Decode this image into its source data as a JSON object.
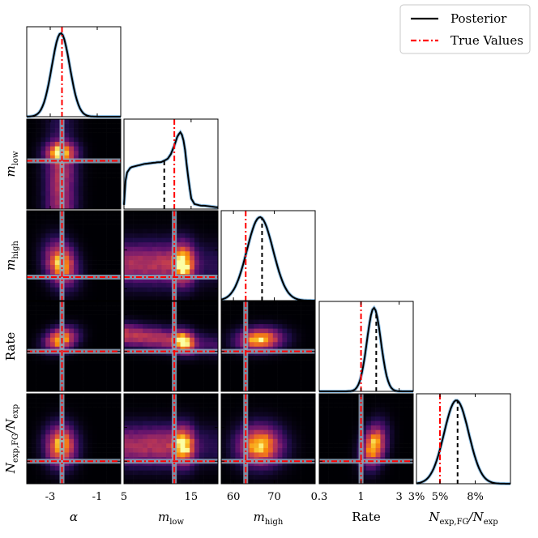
{
  "chart_data": {
    "type": "corner",
    "parameters": [
      {
        "key": "alpha",
        "label": "α",
        "sub": "",
        "italic": true,
        "range": [
          -4,
          0
        ],
        "log": false,
        "ticks": [
          -3,
          -1
        ],
        "tick_labels": [
          "-3",
          "-1"
        ],
        "truth": -2.5,
        "median": -2.5,
        "mode": -2.55,
        "sd": 0.38
      },
      {
        "key": "m_low",
        "label": "m",
        "sub": "low",
        "italic": true,
        "range": [
          5,
          19
        ],
        "log": false,
        "ticks": [
          5,
          15
        ],
        "tick_labels": [
          "5",
          "15"
        ],
        "truth": 12.5,
        "median": 11.0
      },
      {
        "key": "m_high",
        "label": "m",
        "sub": "high",
        "italic": true,
        "range": [
          57,
          80
        ],
        "log": false,
        "ticks": [
          60,
          70
        ],
        "tick_labels": [
          "60",
          "70"
        ],
        "truth": 63.0,
        "median": 67.0,
        "mode": 66.5,
        "sd": 3.2
      },
      {
        "key": "rate",
        "label": "Rate",
        "sub": "",
        "italic": false,
        "range": [
          0.3,
          4.5
        ],
        "log": true,
        "ticks": [
          0.3,
          1,
          3
        ],
        "tick_labels": [
          "0.3",
          "1",
          "3"
        ],
        "truth": 1.0,
        "median": 1.55,
        "mode": 1.45,
        "sd": 0.32
      },
      {
        "key": "n_exp_frac",
        "label": "N",
        "sub": "exp,FG",
        "label2": "N",
        "sub2": "exp",
        "italic": true,
        "range": [
          3,
          11
        ],
        "log": false,
        "ticks": [
          3,
          5,
          8
        ],
        "tick_labels": [
          "3%",
          "5%",
          "8%"
        ],
        "truth": 5.0,
        "median": 6.5,
        "mode": 6.4,
        "sd": 1.05
      }
    ],
    "m_low_marginal": {
      "x": [
        5,
        5.3,
        6,
        7,
        8,
        9,
        10,
        10.5,
        11,
        11.5,
        12,
        12.5,
        13,
        13.5,
        14,
        14.5,
        15,
        15.5,
        16,
        16.5,
        17,
        18,
        19
      ],
      "y": [
        0.05,
        0.42,
        0.5,
        0.52,
        0.54,
        0.55,
        0.56,
        0.56,
        0.58,
        0.6,
        0.66,
        0.76,
        0.88,
        0.93,
        0.78,
        0.42,
        0.13,
        0.06,
        0.05,
        0.04,
        0.04,
        0.03,
        0.02
      ]
    },
    "correlations": {
      "m_high|alpha": -0.4,
      "rate|alpha": 0.45,
      "rate|m_low": -0.7,
      "rate|m_high": 0.15,
      "n_exp_frac|rate": 0.5
    },
    "legend": {
      "position": "top-right",
      "entries": [
        {
          "label": "Posterior",
          "style": "solid",
          "color": "#000000"
        },
        {
          "label": "True Values",
          "style": "dashdot",
          "color": "#ff0000"
        }
      ]
    },
    "colors": {
      "posterior": "#000000",
      "posterior_band": "#3b8fd1",
      "truth": "#ff0000",
      "median": "#000000",
      "truth_band": "#8fa3b8",
      "colormap": "inferno"
    }
  }
}
